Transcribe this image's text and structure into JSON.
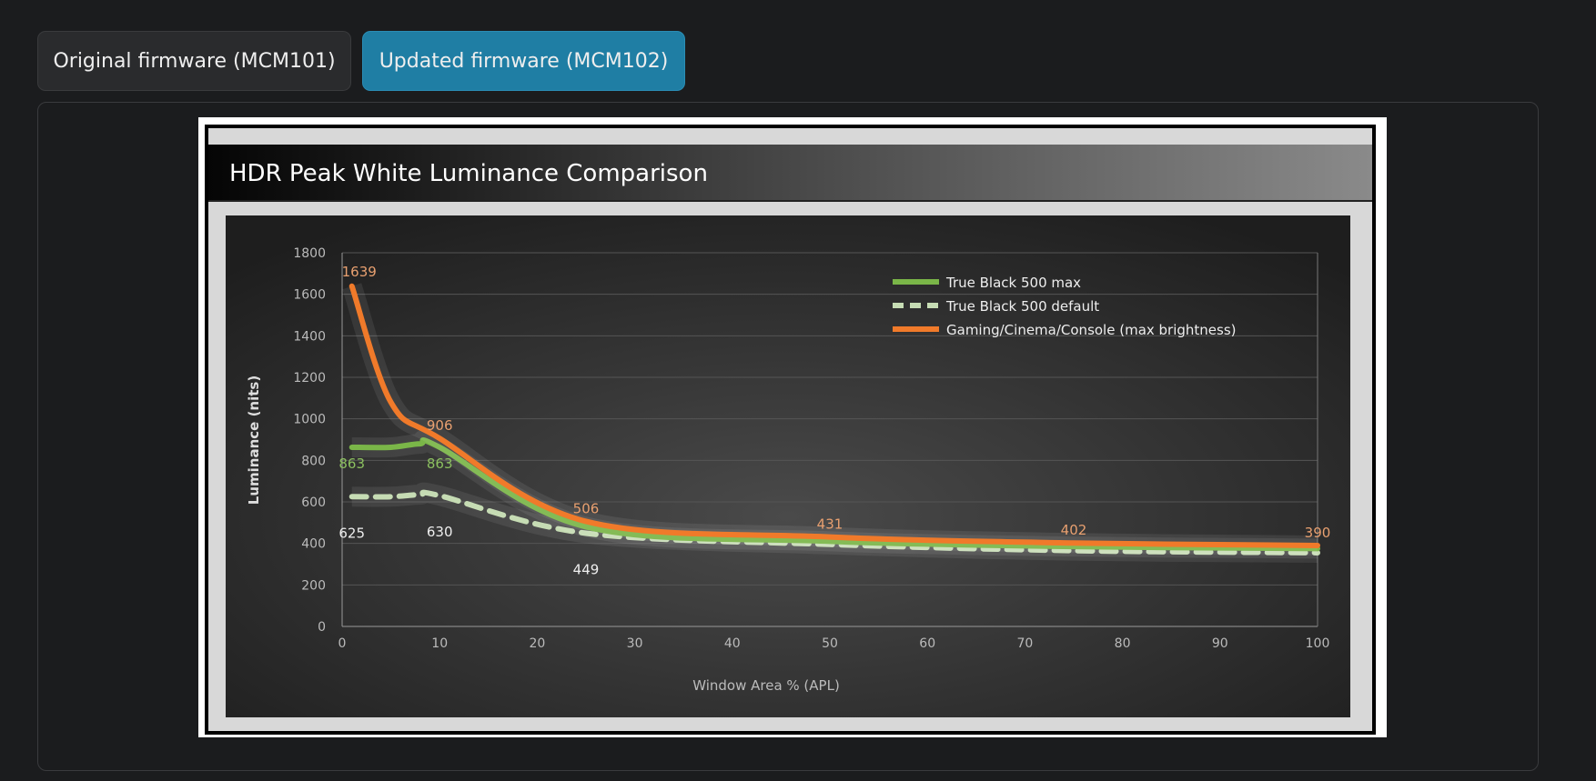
{
  "tabs": [
    {
      "label": "Original firmware (MCM101)",
      "active": false
    },
    {
      "label": "Updated firmware (MCM102)",
      "active": true
    }
  ],
  "chart_data": {
    "type": "line",
    "title": "HDR Peak White Luminance Comparison",
    "xlabel": "Window Area % (APL)",
    "ylabel": "Luminance (nits)",
    "xlim": [
      0,
      100
    ],
    "ylim": [
      0,
      1800
    ],
    "xticks": [
      "0",
      "10",
      "20",
      "30",
      "40",
      "50",
      "60",
      "70",
      "80",
      "90",
      "100"
    ],
    "yticks": [
      "0",
      "200",
      "400",
      "600",
      "800",
      "1000",
      "1200",
      "1400",
      "1600",
      "1800"
    ],
    "grid": true,
    "legend_position": "top-right",
    "series": [
      {
        "name": "True Black 500 max",
        "color": "#7ab648",
        "dash": false,
        "x": [
          1,
          5,
          8,
          10,
          25,
          50,
          75,
          100
        ],
        "y": [
          863,
          863,
          880,
          863,
          480,
          410,
          385,
          375
        ],
        "labels": [
          {
            "x": 1,
            "y": 863,
            "text": "863"
          },
          {
            "x": 10,
            "y": 863,
            "text": "863"
          }
        ]
      },
      {
        "name": "True Black 500 default",
        "color": "#c6dcb4",
        "dash": true,
        "x": [
          1,
          5,
          8,
          10,
          25,
          50,
          75,
          100
        ],
        "y": [
          625,
          625,
          635,
          630,
          449,
          395,
          365,
          355
        ],
        "labels": [
          {
            "x": 1,
            "y": 625,
            "text": "625"
          },
          {
            "x": 10,
            "y": 630,
            "text": "630"
          },
          {
            "x": 25,
            "y": 449,
            "text": "449"
          }
        ]
      },
      {
        "name": "Gaming/Cinema/Console (max brightness)",
        "color": "#f07a2a",
        "dash": false,
        "x": [
          1,
          5,
          10,
          25,
          50,
          75,
          100
        ],
        "y": [
          1639,
          1080,
          906,
          506,
          431,
          402,
          390
        ],
        "labels": [
          {
            "x": 1,
            "y": 1639,
            "text": "1639"
          },
          {
            "x": 10,
            "y": 906,
            "text": "906"
          },
          {
            "x": 25,
            "y": 506,
            "text": "506"
          },
          {
            "x": 50,
            "y": 431,
            "text": "431"
          },
          {
            "x": 75,
            "y": 402,
            "text": "402"
          },
          {
            "x": 100,
            "y": 390,
            "text": "390"
          }
        ]
      }
    ]
  }
}
